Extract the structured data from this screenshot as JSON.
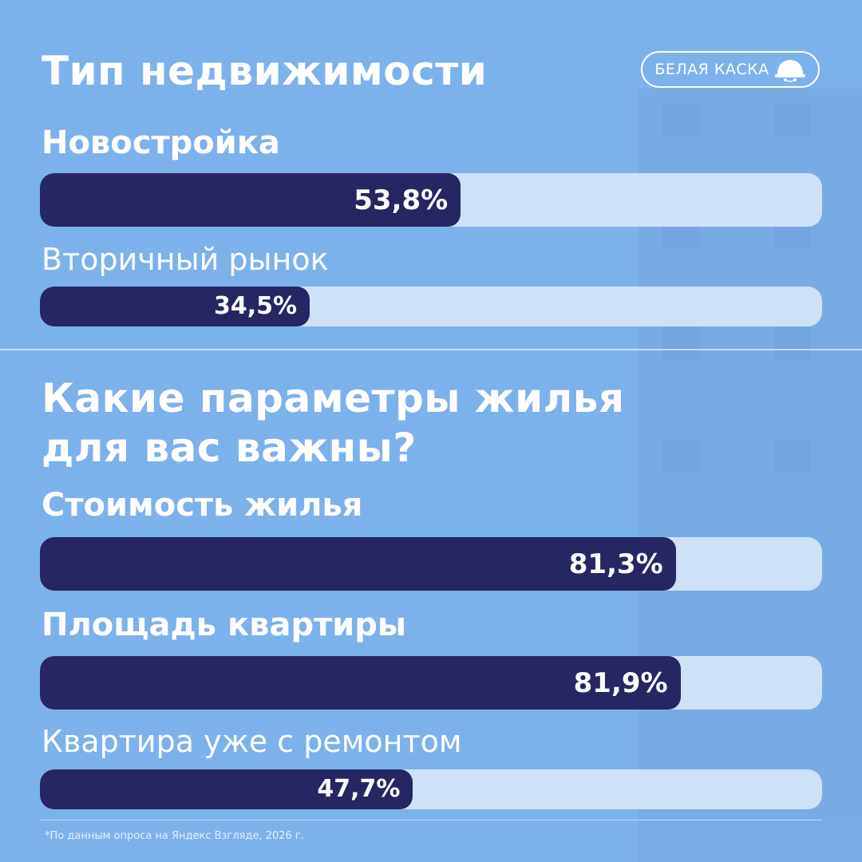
{
  "brand": {
    "name": "БЕЛАЯ КАСКА",
    "icon": "hard-hat-icon"
  },
  "colors": {
    "background": "#7cb2ec",
    "bar_fill": "#262664",
    "bar_track": "#cfe1f7",
    "text": "#ffffff"
  },
  "section1": {
    "title": "Тип недвижимости"
  },
  "section2": {
    "title": "Какие параметры жилья\nдля вас важны?"
  },
  "footnote": "*По данным опроса на Яндекс Взгляде, 2026 г.",
  "chart_data": [
    {
      "type": "bar",
      "orientation": "horizontal",
      "title": "Тип недвижимости",
      "categories": [
        "Новостройка",
        "Вторичный рынок"
      ],
      "values": [
        53.8,
        34.5
      ],
      "value_labels": [
        "53,8%",
        "34,5%"
      ],
      "unit": "%",
      "xlim": [
        0,
        100
      ]
    },
    {
      "type": "bar",
      "orientation": "horizontal",
      "title": "Какие параметры жилья для вас важны?",
      "categories": [
        "Стоимость жилья",
        "Площадь квартиры",
        "Квартира уже с ремонтом"
      ],
      "values": [
        81.3,
        81.9,
        47.7
      ],
      "value_labels": [
        "81,3%",
        "81,9%",
        "47,7%"
      ],
      "unit": "%",
      "xlim": [
        0,
        100
      ]
    }
  ]
}
